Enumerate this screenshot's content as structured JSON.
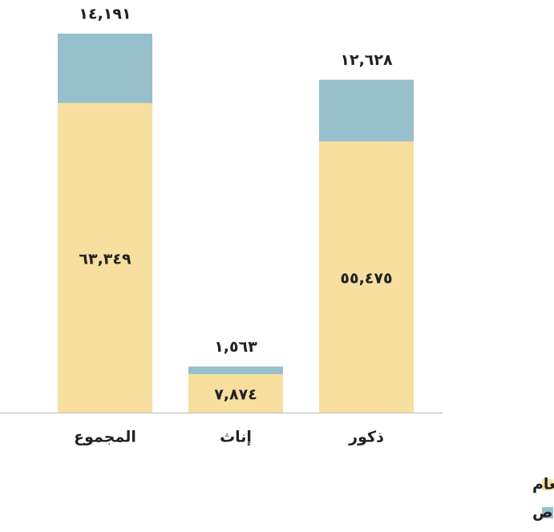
{
  "chart_data": {
    "type": "stacked_bar",
    "categories": [
      "المجموع",
      "إناث",
      "ذكور"
    ],
    "series": [
      {
        "name": "القطاع العام",
        "color": "#f7dfa0",
        "values": [
          63349,
          7874,
          55475
        ],
        "value_labels": [
          "٦٣,٣٤٩",
          "٧,٨٧٤",
          "٥٥,٤٧٥"
        ]
      },
      {
        "name": "القطاع الخاص",
        "color": "#97bfcc",
        "values": [
          14191,
          1563,
          12628
        ],
        "value_labels": [
          "١٤,١٩١",
          "١,٥٦٣",
          "١٢,٦٢٨"
        ]
      }
    ]
  }
}
